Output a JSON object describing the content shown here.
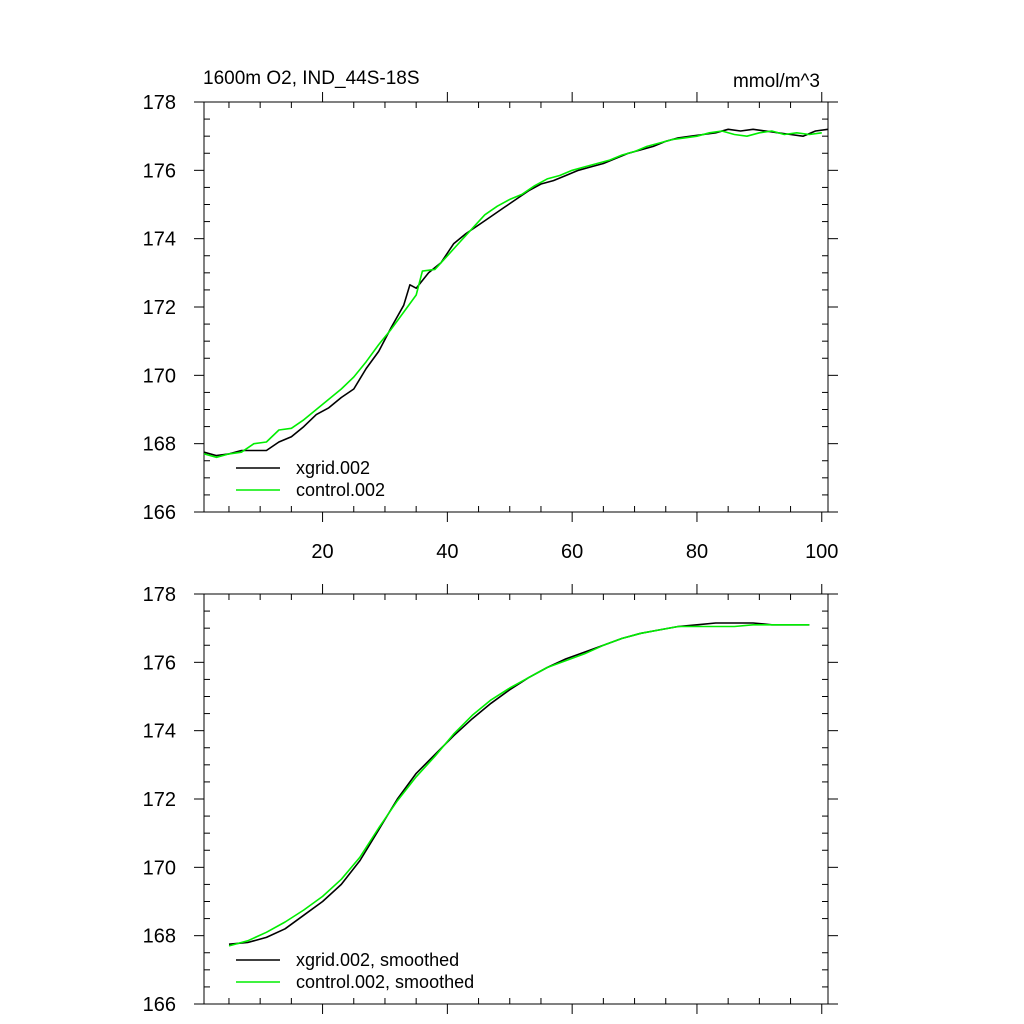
{
  "chart_data": [
    {
      "type": "line",
      "title": "1600m O2, IND_44S-18S",
      "units": "mmol/m^3",
      "xlim": [
        1,
        101
      ],
      "ylim": [
        166,
        178
      ],
      "x_ticks": [
        20,
        40,
        60,
        80,
        100
      ],
      "x_tick_labels": [
        "20",
        "40",
        "60",
        "80",
        "100"
      ],
      "y_ticks": [
        166,
        168,
        170,
        172,
        174,
        176,
        178
      ],
      "y_tick_labels": [
        "166",
        "168",
        "170",
        "172",
        "174",
        "176",
        "178"
      ],
      "legend_position": "bottom-left",
      "series": [
        {
          "name": "xgrid.002",
          "color": "#000000",
          "points": [
            [
              1,
              167.75
            ],
            [
              3,
              167.65
            ],
            [
              5,
              167.7
            ],
            [
              7,
              167.8
            ],
            [
              9,
              167.8
            ],
            [
              11,
              167.8
            ],
            [
              13,
              168.05
            ],
            [
              15,
              168.2
            ],
            [
              17,
              168.5
            ],
            [
              19,
              168.85
            ],
            [
              21,
              169.05
            ],
            [
              23,
              169.35
            ],
            [
              25,
              169.6
            ],
            [
              27,
              170.2
            ],
            [
              29,
              170.7
            ],
            [
              31,
              171.4
            ],
            [
              33,
              172.05
            ],
            [
              34,
              172.65
            ],
            [
              35,
              172.55
            ],
            [
              37,
              173.0
            ],
            [
              39,
              173.3
            ],
            [
              41,
              173.85
            ],
            [
              43,
              174.15
            ],
            [
              45,
              174.4
            ],
            [
              47,
              174.65
            ],
            [
              49,
              174.9
            ],
            [
              51,
              175.15
            ],
            [
              53,
              175.4
            ],
            [
              55,
              175.6
            ],
            [
              57,
              175.7
            ],
            [
              59,
              175.85
            ],
            [
              61,
              176.0
            ],
            [
              63,
              176.1
            ],
            [
              65,
              176.2
            ],
            [
              67,
              176.35
            ],
            [
              69,
              176.5
            ],
            [
              71,
              176.6
            ],
            [
              73,
              176.7
            ],
            [
              75,
              176.85
            ],
            [
              77,
              176.95
            ],
            [
              79,
              177.0
            ],
            [
              81,
              177.05
            ],
            [
              83,
              177.1
            ],
            [
              85,
              177.2
            ],
            [
              87,
              177.15
            ],
            [
              89,
              177.2
            ],
            [
              91,
              177.15
            ],
            [
              93,
              177.1
            ],
            [
              95,
              177.05
            ],
            [
              97,
              177.0
            ],
            [
              99,
              177.15
            ],
            [
              101,
              177.2
            ]
          ]
        },
        {
          "name": "control.002",
          "color": "#00ee00",
          "points": [
            [
              1,
              167.7
            ],
            [
              3,
              167.6
            ],
            [
              5,
              167.7
            ],
            [
              7,
              167.75
            ],
            [
              9,
              168.0
            ],
            [
              11,
              168.05
            ],
            [
              13,
              168.4
            ],
            [
              15,
              168.45
            ],
            [
              17,
              168.7
            ],
            [
              19,
              169.0
            ],
            [
              21,
              169.3
            ],
            [
              23,
              169.6
            ],
            [
              25,
              169.95
            ],
            [
              27,
              170.4
            ],
            [
              29,
              170.9
            ],
            [
              31,
              171.35
            ],
            [
              33,
              171.85
            ],
            [
              35,
              172.35
            ],
            [
              36,
              173.05
            ],
            [
              38,
              173.1
            ],
            [
              40,
              173.5
            ],
            [
              42,
              173.9
            ],
            [
              44,
              174.3
            ],
            [
              46,
              174.7
            ],
            [
              48,
              174.95
            ],
            [
              50,
              175.15
            ],
            [
              52,
              175.3
            ],
            [
              54,
              175.55
            ],
            [
              56,
              175.75
            ],
            [
              58,
              175.85
            ],
            [
              60,
              176.0
            ],
            [
              62,
              176.1
            ],
            [
              64,
              176.2
            ],
            [
              66,
              176.3
            ],
            [
              68,
              176.45
            ],
            [
              70,
              176.55
            ],
            [
              72,
              176.7
            ],
            [
              74,
              176.8
            ],
            [
              76,
              176.9
            ],
            [
              78,
              176.95
            ],
            [
              80,
              177.0
            ],
            [
              82,
              177.1
            ],
            [
              84,
              177.15
            ],
            [
              86,
              177.05
            ],
            [
              88,
              177.0
            ],
            [
              90,
              177.1
            ],
            [
              92,
              177.15
            ],
            [
              94,
              177.05
            ],
            [
              96,
              177.1
            ],
            [
              98,
              177.05
            ],
            [
              100,
              177.1
            ]
          ]
        }
      ]
    },
    {
      "type": "line",
      "title": "",
      "xlim": [
        1,
        101
      ],
      "ylim": [
        166,
        178
      ],
      "x_ticks": [
        20,
        40,
        60,
        80,
        100
      ],
      "y_ticks": [
        166,
        168,
        170,
        172,
        174,
        176,
        178
      ],
      "y_tick_labels": [
        "166",
        "168",
        "170",
        "172",
        "174",
        "176",
        "178"
      ],
      "legend_position": "bottom-left",
      "series": [
        {
          "name": "xgrid.002, smoothed",
          "color": "#000000",
          "points": [
            [
              5,
              167.75
            ],
            [
              8,
              167.8
            ],
            [
              11,
              167.95
            ],
            [
              14,
              168.2
            ],
            [
              17,
              168.6
            ],
            [
              20,
              169.0
            ],
            [
              23,
              169.5
            ],
            [
              26,
              170.2
            ],
            [
              29,
              171.1
            ],
            [
              32,
              172.0
            ],
            [
              35,
              172.75
            ],
            [
              38,
              173.3
            ],
            [
              41,
              173.85
            ],
            [
              44,
              174.35
            ],
            [
              47,
              174.8
            ],
            [
              50,
              175.2
            ],
            [
              53,
              175.55
            ],
            [
              56,
              175.85
            ],
            [
              59,
              176.1
            ],
            [
              62,
              176.3
            ],
            [
              65,
              176.5
            ],
            [
              68,
              176.7
            ],
            [
              71,
              176.85
            ],
            [
              74,
              176.95
            ],
            [
              77,
              177.05
            ],
            [
              80,
              177.1
            ],
            [
              83,
              177.15
            ],
            [
              86,
              177.15
            ],
            [
              89,
              177.15
            ],
            [
              92,
              177.1
            ],
            [
              95,
              177.1
            ],
            [
              98,
              177.1
            ]
          ]
        },
        {
          "name": "control.002, smoothed",
          "color": "#00ee00",
          "points": [
            [
              5,
              167.7
            ],
            [
              8,
              167.85
            ],
            [
              11,
              168.1
            ],
            [
              14,
              168.4
            ],
            [
              17,
              168.75
            ],
            [
              20,
              169.15
            ],
            [
              23,
              169.65
            ],
            [
              26,
              170.3
            ],
            [
              29,
              171.15
            ],
            [
              32,
              171.95
            ],
            [
              35,
              172.65
            ],
            [
              38,
              173.25
            ],
            [
              41,
              173.9
            ],
            [
              44,
              174.45
            ],
            [
              47,
              174.9
            ],
            [
              50,
              175.25
            ],
            [
              53,
              175.55
            ],
            [
              56,
              175.85
            ],
            [
              59,
              176.05
            ],
            [
              62,
              176.25
            ],
            [
              65,
              176.5
            ],
            [
              68,
              176.7
            ],
            [
              71,
              176.85
            ],
            [
              74,
              176.95
            ],
            [
              77,
              177.05
            ],
            [
              80,
              177.05
            ],
            [
              83,
              177.05
            ],
            [
              86,
              177.05
            ],
            [
              89,
              177.1
            ],
            [
              92,
              177.1
            ],
            [
              95,
              177.1
            ],
            [
              98,
              177.1
            ]
          ]
        }
      ]
    }
  ]
}
